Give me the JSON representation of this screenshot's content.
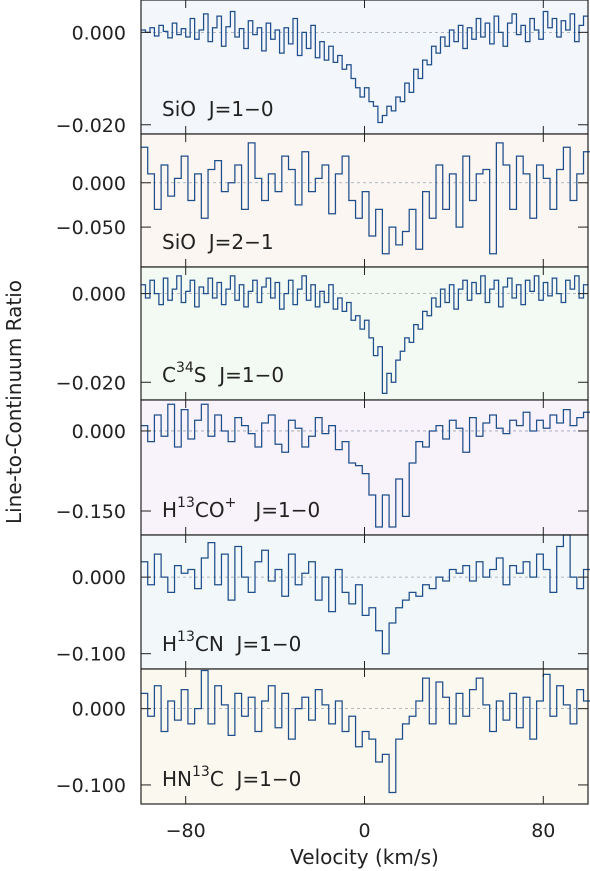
{
  "chart_data": {
    "type": "line",
    "style": "step",
    "xlabel": "Velocity (km/s)",
    "ylabel": "Line-to-Continuum Ratio",
    "xlim": [
      -100,
      100
    ],
    "xticks": [
      -80,
      0,
      80
    ],
    "xtick_labels": [
      "−80",
      "0",
      "80"
    ],
    "panels": [
      {
        "name": "SiO J=1-0",
        "label": {
          "base": "SiO",
          "iso": "",
          "rest": "",
          "charge": "",
          "trans": "J=1−0"
        },
        "ylim": [
          -0.022,
          0.007
        ],
        "yticks": [
          0.0,
          -0.02
        ],
        "ytick_labels": [
          "0.000",
          "−0.020"
        ],
        "x": [
          -100,
          -98,
          -96,
          -94,
          -92,
          -90,
          -88,
          -86,
          -84,
          -82,
          -80,
          -78,
          -76,
          -74,
          -72,
          -70,
          -68,
          -66,
          -64,
          -62,
          -60,
          -58,
          -56,
          -54,
          -52,
          -50,
          -48,
          -46,
          -44,
          -42,
          -40,
          -38,
          -36,
          -34,
          -32,
          -30,
          -28,
          -26,
          -24,
          -22,
          -20,
          -18,
          -16,
          -14,
          -12,
          -10,
          -8,
          -6,
          -4,
          -2,
          0,
          2,
          4,
          6,
          8,
          10,
          12,
          14,
          16,
          18,
          20,
          22,
          24,
          26,
          28,
          30,
          32,
          34,
          36,
          38,
          40,
          42,
          44,
          46,
          48,
          50,
          52,
          54,
          56,
          58,
          60,
          62,
          64,
          66,
          68,
          70,
          72,
          74,
          76,
          78,
          80,
          82,
          84,
          86,
          88,
          90,
          92,
          94,
          96,
          98
        ],
        "y": [
          0.0005,
          0.0,
          0.001,
          -0.0008,
          0.0015,
          0.0002,
          -0.0012,
          0.002,
          -0.0005,
          0.0008,
          -0.001,
          0.003,
          -0.0015,
          0.0005,
          0.004,
          -0.002,
          0.001,
          0.0035,
          -0.003,
          0.0012,
          0.0045,
          -0.001,
          0.0008,
          -0.0035,
          0.0025,
          -0.0005,
          0.001,
          -0.004,
          0.002,
          -0.0015,
          0.0005,
          -0.0045,
          0.001,
          -0.0025,
          0.003,
          -0.005,
          0.0,
          -0.0035,
          0.0015,
          -0.0055,
          -0.002,
          -0.006,
          -0.003,
          -0.0065,
          -0.005,
          -0.008,
          -0.007,
          -0.01,
          -0.012,
          -0.014,
          -0.012,
          -0.015,
          -0.016,
          -0.0195,
          -0.018,
          -0.016,
          -0.017,
          -0.014,
          -0.015,
          -0.011,
          -0.013,
          -0.008,
          -0.01,
          -0.006,
          -0.007,
          -0.003,
          -0.0045,
          -0.001,
          -0.003,
          0.0005,
          -0.002,
          0.0015,
          -0.0035,
          0.001,
          -0.0015,
          0.003,
          -0.001,
          0.002,
          -0.0025,
          0.0035,
          0.0,
          -0.003,
          0.002,
          0.004,
          -0.0005,
          0.0015,
          -0.002,
          0.003,
          0.0005,
          -0.0015,
          0.0045,
          0.001,
          0.003,
          -0.001,
          0.0025,
          0.0005,
          0.004,
          -0.002,
          0.0015,
          0.0035
        ]
      },
      {
        "name": "SiO J=2-1",
        "label": {
          "base": "SiO",
          "iso": "",
          "rest": "",
          "charge": "",
          "trans": "J=2−1"
        },
        "ylim": [
          -0.095,
          0.055
        ],
        "yticks": [
          0.0,
          -0.05
        ],
        "ytick_labels": [
          "0.000",
          "−0.050"
        ],
        "x": [
          -100,
          -97,
          -94,
          -91,
          -88,
          -85,
          -82,
          -79,
          -76,
          -73,
          -70,
          -67,
          -64,
          -61,
          -58,
          -55,
          -52,
          -49,
          -46,
          -43,
          -40,
          -37,
          -34,
          -31,
          -28,
          -25,
          -22,
          -19,
          -16,
          -13,
          -10,
          -7,
          -4,
          -1,
          2,
          5,
          8,
          11,
          14,
          17,
          20,
          23,
          26,
          29,
          32,
          35,
          38,
          41,
          44,
          47,
          50,
          53,
          56,
          59,
          62,
          65,
          68,
          71,
          74,
          77,
          80,
          83,
          86,
          89,
          92,
          95,
          98
        ],
        "y": [
          0.04,
          0.01,
          -0.03,
          0.02,
          -0.015,
          0.005,
          0.03,
          -0.02,
          0.01,
          -0.04,
          0.015,
          0.025,
          -0.01,
          0.0,
          0.02,
          -0.03,
          0.045,
          0.005,
          -0.02,
          0.01,
          -0.01,
          0.03,
          0.015,
          -0.025,
          0.035,
          -0.01,
          0.005,
          0.02,
          -0.035,
          0.01,
          0.03,
          -0.02,
          -0.04,
          -0.01,
          -0.06,
          -0.03,
          -0.08,
          -0.05,
          -0.07,
          -0.055,
          -0.03,
          -0.075,
          -0.01,
          -0.04,
          0.02,
          -0.03,
          0.01,
          -0.05,
          0.03,
          -0.02,
          0.01,
          0.015,
          -0.08,
          0.045,
          0.02,
          -0.03,
          0.03,
          0.01,
          -0.04,
          0.02,
          0.005,
          -0.03,
          0.015,
          0.04,
          -0.02,
          0.01,
          0.035
        ]
      },
      {
        "name": "C34S J=1-0",
        "label": {
          "base": "C",
          "iso": "34",
          "rest": "S",
          "charge": "",
          "trans": "J=1−0"
        },
        "ylim": [
          -0.024,
          0.006
        ],
        "yticks": [
          0.0,
          -0.02
        ],
        "ytick_labels": [
          "0.000",
          "−0.020"
        ],
        "x": [
          -100,
          -98,
          -96,
          -94,
          -92,
          -90,
          -88,
          -86,
          -84,
          -82,
          -80,
          -78,
          -76,
          -74,
          -72,
          -70,
          -68,
          -66,
          -64,
          -62,
          -60,
          -58,
          -56,
          -54,
          -52,
          -50,
          -48,
          -46,
          -44,
          -42,
          -40,
          -38,
          -36,
          -34,
          -32,
          -30,
          -28,
          -26,
          -24,
          -22,
          -20,
          -18,
          -16,
          -14,
          -12,
          -10,
          -8,
          -6,
          -4,
          -2,
          0,
          2,
          4,
          6,
          8,
          10,
          12,
          14,
          16,
          18,
          20,
          22,
          24,
          26,
          28,
          30,
          32,
          34,
          36,
          38,
          40,
          42,
          44,
          46,
          48,
          50,
          52,
          54,
          56,
          58,
          60,
          62,
          64,
          66,
          68,
          70,
          72,
          74,
          76,
          78,
          80,
          82,
          84,
          86,
          88,
          90,
          92,
          94,
          96,
          98
        ],
        "y": [
          0.002,
          -0.001,
          0.003,
          0.0,
          -0.0025,
          0.0035,
          -0.0015,
          0.001,
          0.004,
          -0.002,
          0.0005,
          0.003,
          -0.003,
          0.0015,
          0.0,
          0.0035,
          -0.001,
          0.0025,
          -0.0025,
          0.001,
          0.004,
          -0.0015,
          0.002,
          -0.003,
          0.0005,
          0.003,
          -0.002,
          0.0015,
          0.0035,
          -0.001,
          0.0025,
          -0.0035,
          0.0,
          0.003,
          -0.0025,
          0.001,
          0.004,
          -0.0015,
          0.002,
          -0.003,
          0.0005,
          -0.002,
          0.002,
          -0.0035,
          -0.001,
          -0.004,
          -0.002,
          -0.006,
          -0.005,
          -0.008,
          -0.006,
          -0.01,
          -0.014,
          -0.012,
          -0.0225,
          -0.018,
          -0.02,
          -0.015,
          -0.013,
          -0.01,
          -0.011,
          -0.007,
          -0.008,
          -0.004,
          -0.005,
          -0.001,
          -0.003,
          0.001,
          -0.002,
          0.002,
          -0.0035,
          0.001,
          0.003,
          -0.0015,
          0.0025,
          0.0,
          0.004,
          -0.002,
          0.001,
          0.003,
          -0.003,
          0.0015,
          0.0035,
          -0.001,
          0.002,
          -0.0025,
          0.003,
          0.0005,
          0.004,
          -0.0015,
          0.0025,
          -0.0005,
          0.0035,
          0.0,
          -0.002,
          0.003,
          0.001,
          0.004,
          -0.001,
          0.002
        ]
      },
      {
        "name": "H13CO+ J=1-0",
        "label": {
          "base": "H",
          "iso": "13",
          "rest": "CO",
          "charge": "+",
          "trans": "J=1−0"
        },
        "ylim": [
          -0.195,
          0.058
        ],
        "yticks": [
          0.0,
          -0.15
        ],
        "ytick_labels": [
          "0.000",
          "−0.150"
        ],
        "x": [
          -100,
          -97,
          -94,
          -91,
          -88,
          -85,
          -82,
          -79,
          -76,
          -73,
          -70,
          -67,
          -64,
          -61,
          -58,
          -55,
          -52,
          -49,
          -46,
          -43,
          -40,
          -37,
          -34,
          -31,
          -28,
          -25,
          -22,
          -19,
          -16,
          -13,
          -10,
          -7,
          -4,
          -1,
          2,
          5,
          8,
          11,
          14,
          17,
          20,
          23,
          26,
          29,
          32,
          35,
          38,
          41,
          44,
          47,
          50,
          53,
          56,
          59,
          62,
          65,
          68,
          71,
          74,
          77,
          80,
          83,
          86,
          89,
          92,
          95,
          98
        ],
        "y": [
          0.01,
          -0.02,
          0.03,
          -0.01,
          0.05,
          -0.03,
          0.04,
          -0.015,
          0.02,
          0.05,
          -0.01,
          0.03,
          0.0,
          -0.02,
          0.025,
          0.01,
          -0.005,
          -0.03,
          0.015,
          0.03,
          -0.025,
          -0.04,
          0.02,
          0.005,
          -0.03,
          -0.01,
          0.025,
          -0.005,
          0.01,
          -0.035,
          -0.02,
          -0.06,
          -0.065,
          -0.08,
          -0.12,
          -0.18,
          -0.12,
          -0.18,
          -0.09,
          -0.16,
          -0.06,
          -0.02,
          -0.03,
          0.0,
          0.01,
          -0.015,
          0.02,
          0.005,
          -0.04,
          0.025,
          -0.01,
          0.015,
          0.03,
          0.005,
          -0.005,
          0.02,
          0.01,
          0.035,
          0.0,
          0.02,
          0.005,
          0.03,
          0.015,
          0.04,
          0.01,
          0.025,
          0.035
        ]
      },
      {
        "name": "H13CN J=1-0",
        "label": {
          "base": "H",
          "iso": "13",
          "rest": "CN",
          "charge": "",
          "trans": "J=1−0"
        },
        "ylim": [
          -0.12,
          0.055
        ],
        "yticks": [
          0.0,
          -0.1
        ],
        "ytick_labels": [
          "0.000",
          "−0.100"
        ],
        "x": [
          -100,
          -97,
          -94,
          -91,
          -88,
          -85,
          -82,
          -79,
          -76,
          -73,
          -70,
          -67,
          -64,
          -61,
          -58,
          -55,
          -52,
          -49,
          -46,
          -43,
          -40,
          -37,
          -34,
          -31,
          -28,
          -25,
          -22,
          -19,
          -16,
          -13,
          -10,
          -7,
          -4,
          -1,
          2,
          5,
          8,
          11,
          14,
          17,
          20,
          23,
          26,
          29,
          32,
          35,
          38,
          41,
          44,
          47,
          50,
          53,
          56,
          59,
          62,
          65,
          68,
          71,
          74,
          77,
          80,
          83,
          86,
          89,
          92,
          95,
          98
        ],
        "y": [
          0.02,
          -0.01,
          0.03,
          0.0,
          -0.02,
          0.015,
          0.005,
          0.01,
          -0.015,
          0.025,
          0.045,
          -0.01,
          0.03,
          -0.03,
          0.04,
          0.0,
          -0.02,
          0.02,
          0.035,
          -0.005,
          0.01,
          -0.025,
          0.03,
          -0.01,
          0.005,
          0.02,
          -0.03,
          0.0,
          -0.045,
          0.01,
          -0.02,
          -0.035,
          -0.01,
          -0.05,
          -0.04,
          -0.07,
          -0.1,
          -0.06,
          -0.04,
          -0.03,
          -0.02,
          -0.025,
          -0.01,
          -0.015,
          0.0,
          -0.005,
          0.01,
          0.005,
          0.015,
          -0.005,
          0.02,
          0.0,
          0.01,
          0.025,
          -0.01,
          0.015,
          0.005,
          0.02,
          0.0,
          0.03,
          0.01,
          -0.02,
          0.04,
          0.055,
          0.0,
          -0.015,
          0.01
        ]
      },
      {
        "name": "HN13C J=1-0",
        "label": {
          "base": "HN",
          "iso": "13",
          "rest": "C",
          "charge": "",
          "trans": "J=1−0"
        },
        "ylim": [
          -0.125,
          0.052
        ],
        "yticks": [
          0.0,
          -0.1
        ],
        "ytick_labels": [
          "0.000",
          "−0.100"
        ],
        "x": [
          -100,
          -97,
          -94,
          -91,
          -88,
          -85,
          -82,
          -79,
          -76,
          -73,
          -70,
          -67,
          -64,
          -61,
          -58,
          -55,
          -52,
          -49,
          -46,
          -43,
          -40,
          -37,
          -34,
          -31,
          -28,
          -25,
          -22,
          -19,
          -16,
          -13,
          -10,
          -7,
          -4,
          -1,
          2,
          5,
          8,
          11,
          14,
          17,
          20,
          23,
          26,
          29,
          32,
          35,
          38,
          41,
          44,
          47,
          50,
          53,
          56,
          59,
          62,
          65,
          68,
          71,
          74,
          77,
          80,
          83,
          86,
          89,
          92,
          95,
          98
        ],
        "y": [
          0.02,
          -0.01,
          0.03,
          -0.03,
          0.01,
          -0.015,
          0.025,
          -0.02,
          0.0,
          0.05,
          -0.02,
          0.03,
          0.005,
          -0.035,
          0.02,
          -0.01,
          0.015,
          -0.03,
          0.01,
          0.03,
          -0.025,
          0.02,
          -0.04,
          0.0,
          0.015,
          -0.015,
          0.025,
          0.005,
          -0.02,
          0.01,
          -0.03,
          -0.01,
          -0.05,
          -0.03,
          -0.04,
          -0.07,
          -0.06,
          -0.11,
          -0.04,
          -0.02,
          -0.01,
          0.01,
          0.04,
          -0.02,
          0.035,
          0.015,
          -0.02,
          0.02,
          -0.01,
          0.025,
          0.04,
          0.005,
          -0.03,
          0.01,
          -0.015,
          0.02,
          -0.025,
          0.015,
          -0.04,
          0.01,
          0.045,
          -0.01,
          0.03,
          0.005,
          -0.02,
          0.025,
          0.01
        ]
      }
    ]
  }
}
